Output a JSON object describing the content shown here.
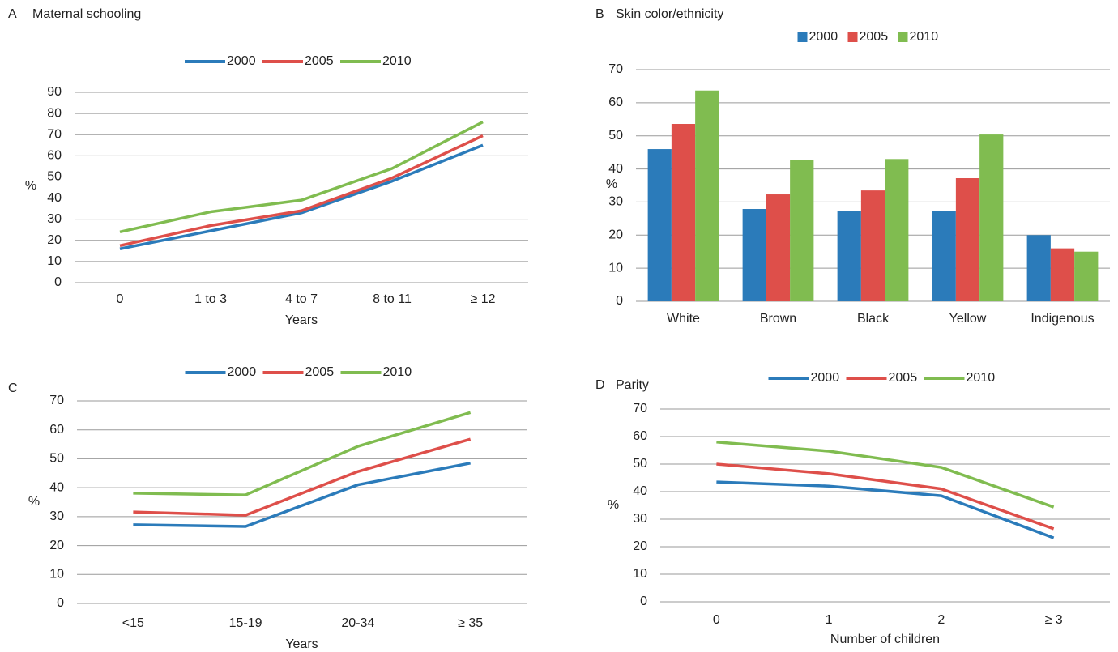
{
  "chart_data": [
    {
      "type": "line",
      "panel": "A",
      "title": "Maternal schooling",
      "x_label": "Years",
      "y_label": "%",
      "categories": [
        "0",
        "1 to 3",
        "4 to 7",
        "8 to 11",
        "≥ 12"
      ],
      "series": [
        {
          "name": "2000",
          "color": "#2b7bba",
          "values": [
            16,
            24.5,
            33,
            48,
            65
          ]
        },
        {
          "name": "2005",
          "color": "#de4f4a",
          "values": [
            17.5,
            27,
            34,
            49.5,
            69.5
          ]
        },
        {
          "name": "2010",
          "color": "#80bc50",
          "values": [
            24,
            33.5,
            39,
            54,
            76
          ]
        }
      ],
      "ylim": [
        0,
        90
      ],
      "yticks": [
        0,
        10,
        20,
        30,
        40,
        50,
        60,
        70,
        80,
        90
      ],
      "grid": true
    },
    {
      "type": "bar",
      "panel": "B",
      "title": "Skin color/ethnicity",
      "y_label": "%",
      "categories": [
        "White",
        "Brown",
        "Black",
        "Yellow",
        "Indigenous"
      ],
      "series": [
        {
          "name": "2000",
          "color": "#2b7bba",
          "values": [
            46,
            27.9,
            27.2,
            27.2,
            20
          ]
        },
        {
          "name": "2005",
          "color": "#de4f4a",
          "values": [
            53.6,
            32.3,
            33.5,
            37.2,
            16
          ]
        },
        {
          "name": "2010",
          "color": "#80bc50",
          "values": [
            63.7,
            42.8,
            43,
            50.4,
            15
          ]
        }
      ],
      "ylim": [
        0,
        70
      ],
      "yticks": [
        0,
        10,
        20,
        30,
        40,
        50,
        60,
        70
      ],
      "grid": true
    },
    {
      "type": "line",
      "panel": "C",
      "x_label": "Years",
      "y_label": "%",
      "categories": [
        "<15",
        "15-19",
        "20-34",
        "≥ 35"
      ],
      "series": [
        {
          "name": "2000",
          "color": "#2b7bba",
          "values": [
            27.2,
            26.6,
            41,
            48.5
          ]
        },
        {
          "name": "2005",
          "color": "#de4f4a",
          "values": [
            31.6,
            30.5,
            45.6,
            56.8
          ]
        },
        {
          "name": "2010",
          "color": "#80bc50",
          "values": [
            38.1,
            37.5,
            54.3,
            66
          ]
        }
      ],
      "ylim": [
        0,
        70
      ],
      "yticks": [
        0,
        10,
        20,
        30,
        40,
        50,
        60,
        70
      ],
      "grid": true
    },
    {
      "type": "line",
      "panel": "D",
      "title": "Parity",
      "x_label": "Number of children",
      "y_label": "%",
      "categories": [
        "0",
        "1",
        "2",
        "≥ 3"
      ],
      "series": [
        {
          "name": "2000",
          "color": "#2b7bba",
          "values": [
            43.5,
            42,
            38.5,
            23.2
          ]
        },
        {
          "name": "2005",
          "color": "#de4f4a",
          "values": [
            50,
            46.5,
            41,
            26.5
          ]
        },
        {
          "name": "2010",
          "color": "#80bc50",
          "values": [
            58,
            54.7,
            48.8,
            34.4
          ]
        }
      ],
      "ylim": [
        0,
        70
      ],
      "yticks": [
        0,
        10,
        20,
        30,
        40,
        50,
        60,
        70
      ],
      "grid": true
    }
  ]
}
